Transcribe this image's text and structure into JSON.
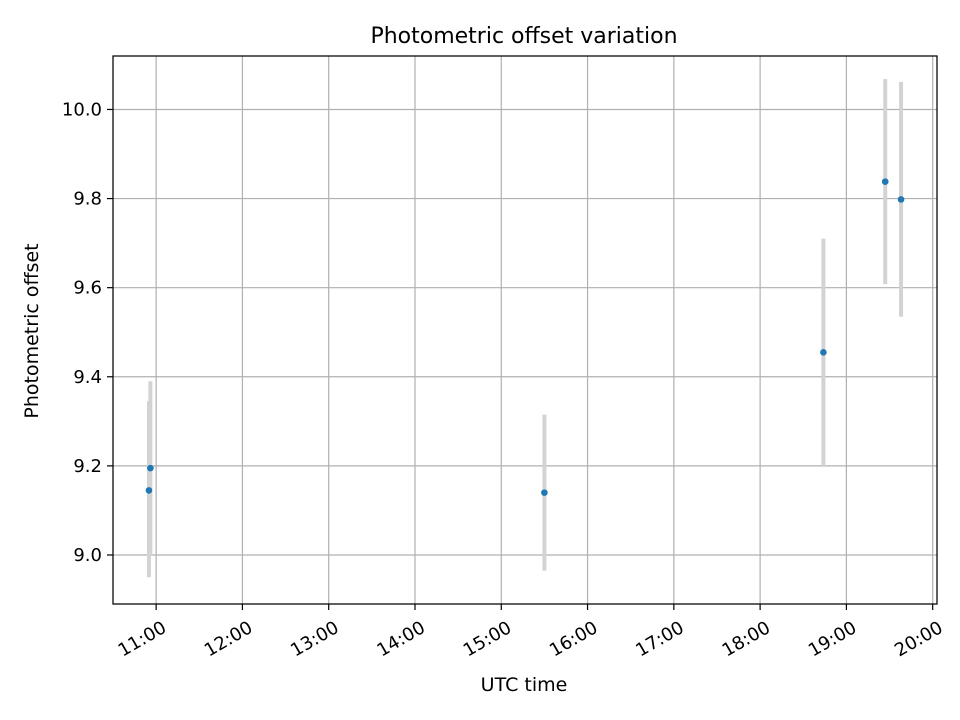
{
  "chart_data": {
    "type": "scatter",
    "title": "Photometric offset variation",
    "xlabel": "UTC time",
    "ylabel": "Photometric offset",
    "x_tick_labels": [
      "11:00",
      "12:00",
      "13:00",
      "14:00",
      "15:00",
      "16:00",
      "17:00",
      "18:00",
      "19:00",
      "20:00"
    ],
    "x_ticks_hours": [
      11,
      12,
      13,
      14,
      15,
      16,
      17,
      18,
      19,
      20
    ],
    "xlim_hours": [
      10.5,
      20.05
    ],
    "y_tick_labels": [
      "9.0",
      "9.2",
      "9.4",
      "9.6",
      "9.8",
      "10.0"
    ],
    "y_ticks": [
      9.0,
      9.2,
      9.4,
      9.6,
      9.8,
      10.0
    ],
    "ylim": [
      8.89,
      10.12
    ],
    "grid": true,
    "points": [
      {
        "x": "10:55",
        "y": 9.145,
        "yerr_low": 8.95,
        "yerr_high": 9.345
      },
      {
        "x": "10:56",
        "y": 9.195,
        "yerr_low": 9.0,
        "yerr_high": 9.39
      },
      {
        "x": "15:30",
        "y": 9.14,
        "yerr_low": 8.965,
        "yerr_high": 9.315
      },
      {
        "x": "18:44",
        "y": 9.455,
        "yerr_low": 9.2,
        "yerr_high": 9.71
      },
      {
        "x": "19:27",
        "y": 9.838,
        "yerr_low": 9.608,
        "yerr_high": 10.068
      },
      {
        "x": "19:38",
        "y": 9.798,
        "yerr_low": 9.535,
        "yerr_high": 10.062
      }
    ],
    "colors": {
      "marker": "#1f77b4",
      "errorbar": "#d3d3d3",
      "grid": "#b0b0b0",
      "axes": "#000000"
    }
  }
}
